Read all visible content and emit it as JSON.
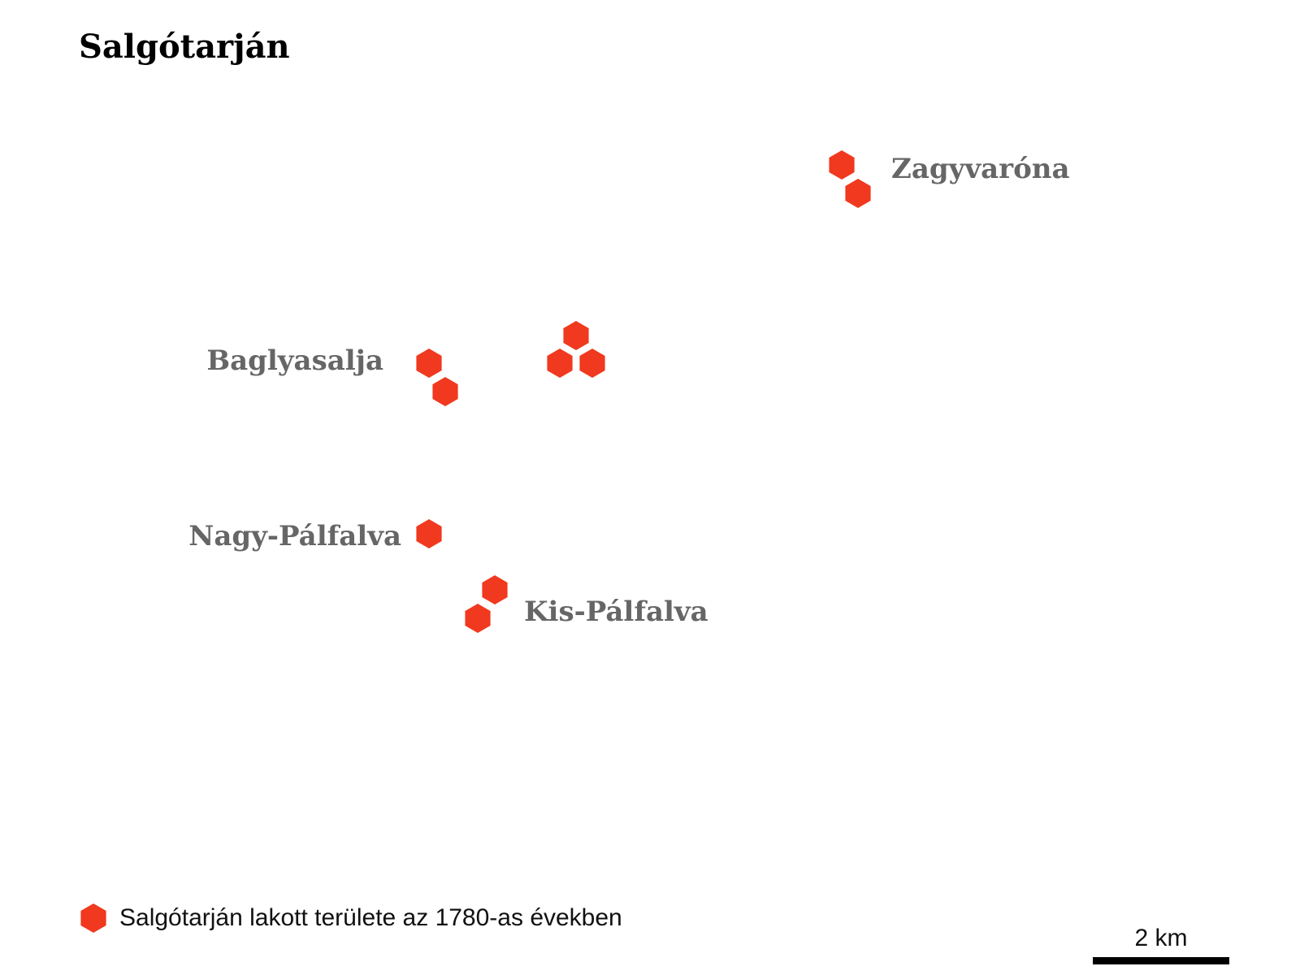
{
  "title": "Salgótarján",
  "marker_color": "#f0391e",
  "label_color": "#666666",
  "marker_icon": "hexagon-icon",
  "places": [
    {
      "id": "zagyvarona",
      "label": "Zagyvaróna"
    },
    {
      "id": "baglyasalja",
      "label": "Baglyasalja"
    },
    {
      "id": "center",
      "label": ""
    },
    {
      "id": "nagy-palfalva",
      "label": "Nagy-Pálfalva"
    },
    {
      "id": "kis-palfalva",
      "label": "Kis-Pálfalva"
    }
  ],
  "legend": {
    "label": "Salgótarján lakott területe az 1780-as években"
  },
  "scale": {
    "label": "2 km"
  }
}
